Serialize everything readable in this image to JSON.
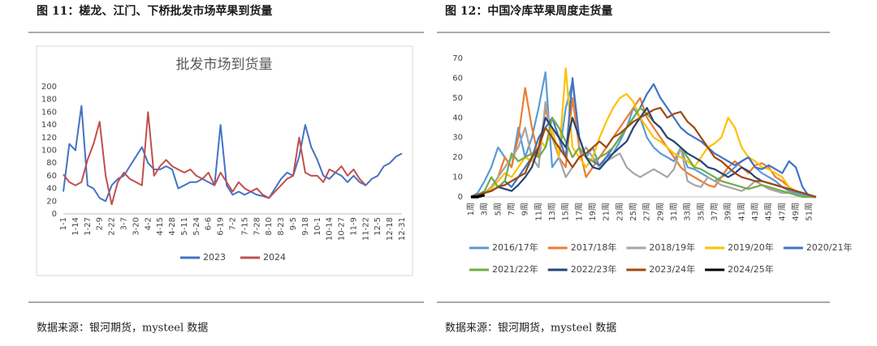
{
  "chart_data": [
    {
      "type": "line",
      "caption": "图 11：槎龙、江门、下桥批发市场苹果到货量",
      "title": "批发市场到货量",
      "source": "数据来源：银河期货，mysteel 数据",
      "categories": [
        "1-1",
        null,
        "1-14",
        null,
        "1-27",
        null,
        "2-9",
        null,
        "2-22",
        null,
        "3-7",
        null,
        "3-20",
        null,
        "4-2",
        null,
        "4-15",
        null,
        "4-28",
        null,
        "5-11",
        null,
        "5-24",
        null,
        "6-6",
        null,
        "6-19",
        null,
        "7-2",
        null,
        "7-15",
        null,
        "7-28",
        null,
        "8-10",
        null,
        "8-23",
        null,
        "9-5",
        null,
        "9-18",
        null,
        "10-1",
        null,
        "10-14",
        null,
        "10-27",
        null,
        "11-9",
        null,
        "11-22",
        null,
        "12-5",
        null,
        "12-18",
        null,
        "12-31"
      ],
      "series": [
        {
          "name": "2023",
          "color": "#4472c4",
          "values": [
            35,
            110,
            100,
            170,
            45,
            40,
            25,
            20,
            45,
            55,
            60,
            75,
            90,
            105,
            80,
            70,
            70,
            75,
            70,
            40,
            45,
            50,
            50,
            55,
            50,
            45,
            140,
            45,
            30,
            35,
            30,
            35,
            30,
            28,
            25,
            40,
            55,
            65,
            60,
            90,
            140,
            105,
            85,
            60,
            55,
            65,
            60,
            50,
            60,
            50,
            45,
            55,
            60,
            75,
            80,
            90,
            95
          ]
        },
        {
          "name": "2024",
          "color": "#c0504d",
          "values": [
            62,
            50,
            45,
            50,
            85,
            110,
            145,
            60,
            15,
            50,
            65,
            55,
            50,
            45,
            160,
            60,
            75,
            85,
            75,
            70,
            65,
            70,
            60,
            55,
            65,
            45,
            65,
            50,
            35,
            50,
            40,
            35,
            40,
            30,
            25,
            35,
            45,
            55,
            60,
            120,
            65,
            60,
            60,
            50,
            70,
            65,
            75,
            60,
            70,
            55,
            45,
            null,
            null,
            null,
            null,
            null,
            null
          ]
        }
      ],
      "ylim": [
        0,
        200
      ],
      "yticks": [
        0,
        20,
        40,
        60,
        80,
        100,
        120,
        140,
        160,
        180,
        200
      ],
      "legend": "bottom"
    },
    {
      "type": "line",
      "caption": "图 12：中国冷库苹果周度走货量",
      "source": "数据来源：银河期货，mysteel 数据",
      "categories": [
        "1周",
        null,
        "3周",
        null,
        "5周",
        null,
        "7周",
        null,
        "9周",
        null,
        "11周",
        null,
        "13周",
        null,
        "15周",
        null,
        "17周",
        null,
        "19周",
        null,
        "21周",
        null,
        "23周",
        null,
        "25周",
        null,
        "27周",
        null,
        "29周",
        null,
        "31周",
        null,
        "33周",
        null,
        "35周",
        null,
        "37周",
        null,
        "39周",
        null,
        "41周",
        null,
        "43周",
        null,
        "45周",
        null,
        "47周",
        null,
        "49周",
        null,
        "51周",
        null
      ],
      "series": [
        {
          "name": "2016/17年",
          "color": "#5b9bd5",
          "values": [
            0,
            2,
            8,
            15,
            25,
            20,
            15,
            35,
            20,
            30,
            45,
            63,
            15,
            20,
            45,
            58,
            30,
            20,
            25,
            15,
            20,
            22,
            28,
            35,
            45,
            40,
            30,
            25,
            22,
            20,
            18,
            25,
            15,
            14,
            12,
            10,
            8,
            10,
            12,
            15,
            18,
            20,
            15,
            12,
            10,
            8,
            5,
            3,
            2,
            1,
            0,
            0
          ]
        },
        {
          "name": "2017/18年",
          "color": "#ed7d31",
          "values": [
            0,
            1,
            2,
            5,
            10,
            20,
            15,
            30,
            55,
            35,
            20,
            45,
            30,
            20,
            15,
            50,
            25,
            10,
            15,
            20,
            25,
            30,
            35,
            40,
            45,
            50,
            40,
            35,
            30,
            25,
            20,
            15,
            12,
            10,
            8,
            6,
            5,
            10,
            15,
            18,
            15,
            12,
            16,
            17,
            15,
            10,
            8,
            5,
            3,
            2,
            1,
            0
          ]
        },
        {
          "name": "2018/19年",
          "color": "#a5a5a5",
          "values": [
            0,
            1,
            2,
            5,
            10,
            15,
            20,
            25,
            35,
            20,
            15,
            48,
            30,
            20,
            10,
            15,
            20,
            25,
            20,
            15,
            18,
            20,
            22,
            15,
            12,
            10,
            12,
            14,
            12,
            10,
            14,
            25,
            8,
            6,
            5,
            10,
            8,
            6,
            5,
            4,
            3,
            5,
            8,
            6,
            4,
            3,
            2,
            2,
            1,
            0,
            0,
            0
          ]
        },
        {
          "name": "2019/20年",
          "color": "#ffc000",
          "values": [
            0,
            1,
            2,
            4,
            8,
            12,
            10,
            15,
            20,
            18,
            30,
            25,
            35,
            20,
            65,
            25,
            20,
            15,
            20,
            30,
            38,
            45,
            50,
            52,
            48,
            40,
            35,
            30,
            28,
            25,
            22,
            20,
            18,
            15,
            20,
            25,
            27,
            30,
            40,
            35,
            25,
            20,
            18,
            15,
            14,
            12,
            10,
            5,
            3,
            2,
            1,
            0
          ]
        },
        {
          "name": "2020/21年",
          "color": "#4472c4",
          "values": [
            0,
            1,
            2,
            3,
            5,
            8,
            5,
            10,
            15,
            20,
            30,
            35,
            40,
            30,
            20,
            60,
            30,
            20,
            18,
            16,
            20,
            25,
            30,
            35,
            40,
            45,
            52,
            57,
            50,
            45,
            40,
            35,
            32,
            30,
            28,
            25,
            22,
            20,
            18,
            16,
            18,
            20,
            15,
            14,
            16,
            14,
            12,
            18,
            15,
            5,
            0,
            0
          ]
        },
        {
          "name": "2021/22年",
          "color": "#70ad47",
          "values": [
            0,
            1,
            3,
            10,
            5,
            8,
            22,
            18,
            20,
            22,
            20,
            25,
            40,
            35,
            28,
            20,
            25,
            20,
            18,
            20,
            22,
            25,
            30,
            35,
            40,
            45,
            42,
            38,
            35,
            30,
            28,
            25,
            20,
            15,
            14,
            12,
            10,
            8,
            7,
            6,
            5,
            4,
            5,
            6,
            5,
            4,
            3,
            2,
            1,
            0,
            0,
            0
          ]
        },
        {
          "name": "2022/23年",
          "color": "#264478",
          "values": [
            0,
            1,
            2,
            3,
            5,
            4,
            3,
            6,
            10,
            15,
            25,
            40,
            35,
            30,
            25,
            40,
            30,
            20,
            15,
            14,
            18,
            22,
            25,
            28,
            35,
            40,
            45,
            38,
            35,
            30,
            28,
            25,
            22,
            20,
            18,
            15,
            14,
            12,
            10,
            12,
            15,
            13,
            10,
            8,
            7,
            6,
            5,
            4,
            3,
            2,
            1,
            0
          ]
        },
        {
          "name": "2023/24年",
          "color": "#9e480e",
          "values": [
            0,
            1,
            2,
            3,
            5,
            6,
            8,
            10,
            12,
            20,
            25,
            35,
            30,
            25,
            20,
            15,
            20,
            22,
            25,
            28,
            25,
            30,
            32,
            35,
            38,
            40,
            42,
            44,
            45,
            40,
            42,
            43,
            38,
            35,
            30,
            25,
            20,
            18,
            15,
            12,
            10,
            9,
            8,
            8,
            7,
            6,
            5,
            4,
            3,
            2,
            1,
            0
          ]
        },
        {
          "name": "2024/25年",
          "color": "#000000",
          "values": [
            0,
            0,
            1,
            null,
            null,
            null,
            null,
            null,
            null,
            null,
            null,
            null,
            null,
            null,
            null,
            null,
            null,
            null,
            null,
            null,
            null,
            null,
            null,
            null,
            null,
            null,
            null,
            null,
            null,
            null,
            null,
            null,
            null,
            null,
            null,
            null,
            null,
            null,
            null,
            null,
            null,
            null,
            null,
            null,
            null,
            null,
            null,
            null,
            null,
            null,
            null,
            null
          ]
        }
      ],
      "ylim": [
        0,
        70
      ],
      "yticks": [
        0,
        10,
        20,
        30,
        40,
        50,
        60,
        70
      ],
      "legend": "bottom"
    }
  ]
}
